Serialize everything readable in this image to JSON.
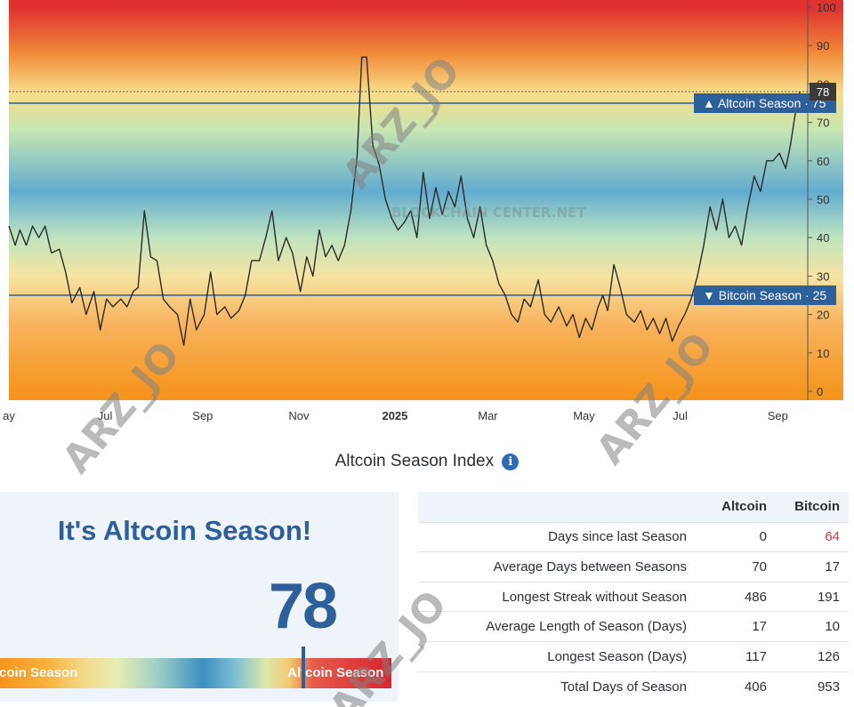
{
  "chart_data": {
    "type": "line",
    "title": "Altcoin Season Index",
    "y_range": [
      0,
      100
    ],
    "y_ticks": [
      "0",
      "10",
      "20",
      "30",
      "40",
      "50",
      "60",
      "70",
      "80",
      "90",
      "100"
    ],
    "x_range": [
      "2024-05-01",
      "2025-09-20"
    ],
    "x_ticks": [
      {
        "date": "2024-05-01",
        "label": "ay"
      },
      {
        "date": "2024-07-01",
        "label": "Jul"
      },
      {
        "date": "2024-09-01",
        "label": "Sep"
      },
      {
        "date": "2024-11-01",
        "label": "Nov"
      },
      {
        "date": "2025-01-01",
        "label": "2025",
        "bold": true
      },
      {
        "date": "2025-03-01",
        "label": "Mar"
      },
      {
        "date": "2025-05-01",
        "label": "May"
      },
      {
        "date": "2025-07-01",
        "label": "Jul"
      },
      {
        "date": "2025-09-01",
        "label": "Sep"
      }
    ],
    "series": [
      {
        "color": "#2b2b2b",
        "points": [
          [
            "2024-05-01",
            43
          ],
          [
            "2024-05-05",
            38
          ],
          [
            "2024-05-08",
            42
          ],
          [
            "2024-05-12",
            38
          ],
          [
            "2024-05-16",
            43
          ],
          [
            "2024-05-20",
            40
          ],
          [
            "2024-05-24",
            43
          ],
          [
            "2024-05-28",
            36
          ],
          [
            "2024-06-02",
            37
          ],
          [
            "2024-06-06",
            31
          ],
          [
            "2024-06-10",
            23
          ],
          [
            "2024-06-15",
            27
          ],
          [
            "2024-06-19",
            20
          ],
          [
            "2024-06-24",
            26
          ],
          [
            "2024-06-28",
            16
          ],
          [
            "2024-07-02",
            24
          ],
          [
            "2024-07-06",
            22
          ],
          [
            "2024-07-11",
            24
          ],
          [
            "2024-07-15",
            22
          ],
          [
            "2024-07-19",
            26
          ],
          [
            "2024-07-22",
            27
          ],
          [
            "2024-07-26",
            47
          ],
          [
            "2024-07-30",
            35
          ],
          [
            "2024-08-03",
            34
          ],
          [
            "2024-08-07",
            24
          ],
          [
            "2024-08-11",
            22
          ],
          [
            "2024-08-16",
            20
          ],
          [
            "2024-08-20",
            12
          ],
          [
            "2024-08-24",
            24
          ],
          [
            "2024-08-28",
            16
          ],
          [
            "2024-09-02",
            20
          ],
          [
            "2024-09-06",
            31
          ],
          [
            "2024-09-10",
            20
          ],
          [
            "2024-09-15",
            22
          ],
          [
            "2024-09-19",
            19
          ],
          [
            "2024-09-24",
            21
          ],
          [
            "2024-09-28",
            25
          ],
          [
            "2024-10-02",
            34
          ],
          [
            "2024-10-07",
            34
          ],
          [
            "2024-10-11",
            40
          ],
          [
            "2024-10-15",
            47
          ],
          [
            "2024-10-19",
            34
          ],
          [
            "2024-10-24",
            40
          ],
          [
            "2024-10-28",
            36
          ],
          [
            "2024-11-02",
            26
          ],
          [
            "2024-11-06",
            35
          ],
          [
            "2024-11-10",
            30
          ],
          [
            "2024-11-14",
            42
          ],
          [
            "2024-11-18",
            35
          ],
          [
            "2024-11-22",
            38
          ],
          [
            "2024-11-26",
            34
          ],
          [
            "2024-11-30",
            38
          ],
          [
            "2024-12-04",
            47
          ],
          [
            "2024-12-08",
            61
          ],
          [
            "2024-12-11",
            87
          ],
          [
            "2024-12-14",
            87
          ],
          [
            "2024-12-18",
            64
          ],
          [
            "2024-12-22",
            59
          ],
          [
            "2024-12-26",
            50
          ],
          [
            "2024-12-30",
            45
          ],
          [
            "2025-01-03",
            42
          ],
          [
            "2025-01-07",
            44
          ],
          [
            "2025-01-11",
            47
          ],
          [
            "2025-01-15",
            40
          ],
          [
            "2025-01-19",
            57
          ],
          [
            "2025-01-23",
            45
          ],
          [
            "2025-01-27",
            53
          ],
          [
            "2025-01-31",
            46
          ],
          [
            "2025-02-04",
            52
          ],
          [
            "2025-02-08",
            48
          ],
          [
            "2025-02-12",
            56
          ],
          [
            "2025-02-16",
            45
          ],
          [
            "2025-02-20",
            40
          ],
          [
            "2025-02-24",
            48
          ],
          [
            "2025-02-28",
            38
          ],
          [
            "2025-03-04",
            34
          ],
          [
            "2025-03-08",
            28
          ],
          [
            "2025-03-12",
            25
          ],
          [
            "2025-03-16",
            20
          ],
          [
            "2025-03-20",
            18
          ],
          [
            "2025-03-24",
            24
          ],
          [
            "2025-03-28",
            22
          ],
          [
            "2025-04-02",
            29
          ],
          [
            "2025-04-06",
            20
          ],
          [
            "2025-04-10",
            18
          ],
          [
            "2025-04-15",
            22
          ],
          [
            "2025-04-20",
            17
          ],
          [
            "2025-04-24",
            20
          ],
          [
            "2025-04-28",
            14
          ],
          [
            "2025-05-02",
            19
          ],
          [
            "2025-05-06",
            16
          ],
          [
            "2025-05-10",
            22
          ],
          [
            "2025-05-13",
            25
          ],
          [
            "2025-05-16",
            21
          ],
          [
            "2025-05-20",
            33
          ],
          [
            "2025-05-24",
            27
          ],
          [
            "2025-05-28",
            20
          ],
          [
            "2025-06-02",
            18
          ],
          [
            "2025-06-06",
            21
          ],
          [
            "2025-06-10",
            16
          ],
          [
            "2025-06-14",
            19
          ],
          [
            "2025-06-18",
            15
          ],
          [
            "2025-06-22",
            19
          ],
          [
            "2025-06-26",
            13
          ],
          [
            "2025-06-30",
            17
          ],
          [
            "2025-07-04",
            20
          ],
          [
            "2025-07-08",
            24
          ],
          [
            "2025-07-12",
            30
          ],
          [
            "2025-07-16",
            38
          ],
          [
            "2025-07-20",
            48
          ],
          [
            "2025-07-24",
            42
          ],
          [
            "2025-07-28",
            50
          ],
          [
            "2025-08-01",
            40
          ],
          [
            "2025-08-05",
            43
          ],
          [
            "2025-08-09",
            38
          ],
          [
            "2025-08-13",
            48
          ],
          [
            "2025-08-17",
            56
          ],
          [
            "2025-08-21",
            52
          ],
          [
            "2025-08-25",
            60
          ],
          [
            "2025-08-29",
            60
          ],
          [
            "2025-09-02",
            62
          ],
          [
            "2025-09-06",
            58
          ],
          [
            "2025-09-09",
            64
          ],
          [
            "2025-09-12",
            72
          ],
          [
            "2025-09-15",
            78
          ]
        ]
      }
    ],
    "reference_lines": [
      {
        "value": 75,
        "label": "▲ Altcoin Season · 75",
        "color": "#2d5f9a",
        "style": "solid"
      },
      {
        "value": 25,
        "label": "▼ Bitcoin Season · 25",
        "color": "#2d5f9a",
        "style": "solid"
      },
      {
        "value": 78,
        "label": "78",
        "color": "#555555",
        "style": "dotted"
      }
    ],
    "background_gradient": [
      {
        "value": 100,
        "color": "#e03030"
      },
      {
        "value": 88,
        "color": "#f08a38"
      },
      {
        "value": 78,
        "color": "#f8dc88"
      },
      {
        "value": 68,
        "color": "#c7e6b2"
      },
      {
        "value": 52,
        "color": "#62acd0"
      },
      {
        "value": 40,
        "color": "#bfe4c0"
      },
      {
        "value": 30,
        "color": "#f6e4a2"
      },
      {
        "value": 18,
        "color": "#f8b460"
      },
      {
        "value": 0,
        "color": "#f5951f"
      }
    ]
  },
  "index_title": "Altcoin Season Index",
  "info_icon": "info-icon",
  "season_card": {
    "headline": "It's Altcoin Season!",
    "value": "78",
    "gauge_left_label": "tcoin Season",
    "gauge_right_label": "Altcoin Season"
  },
  "stats": {
    "headers": [
      "",
      "Altcoin",
      "Bitcoin"
    ],
    "rows": [
      {
        "label": "Days since last Season",
        "altcoin": "0",
        "bitcoin": "64",
        "bitcoin_color": "#d8343b"
      },
      {
        "label": "Average Days between Seasons",
        "altcoin": "70",
        "bitcoin": "17"
      },
      {
        "label": "Longest Streak without Season",
        "altcoin": "486",
        "bitcoin": "191"
      },
      {
        "label": "Average Length of Season (Days)",
        "altcoin": "17",
        "bitcoin": "10"
      },
      {
        "label": "Longest Season (Days)",
        "altcoin": "117",
        "bitcoin": "126"
      },
      {
        "label": "Total Days of Season",
        "altcoin": "406",
        "bitcoin": "953"
      }
    ]
  },
  "watermarks": [
    "ARZ_JO",
    "ARZ_JO",
    "ARZ_JO",
    "ARZ_JO",
    "ARZ_JO"
  ],
  "source_watermark": "BLOCKCHAIN CENTER.NET"
}
